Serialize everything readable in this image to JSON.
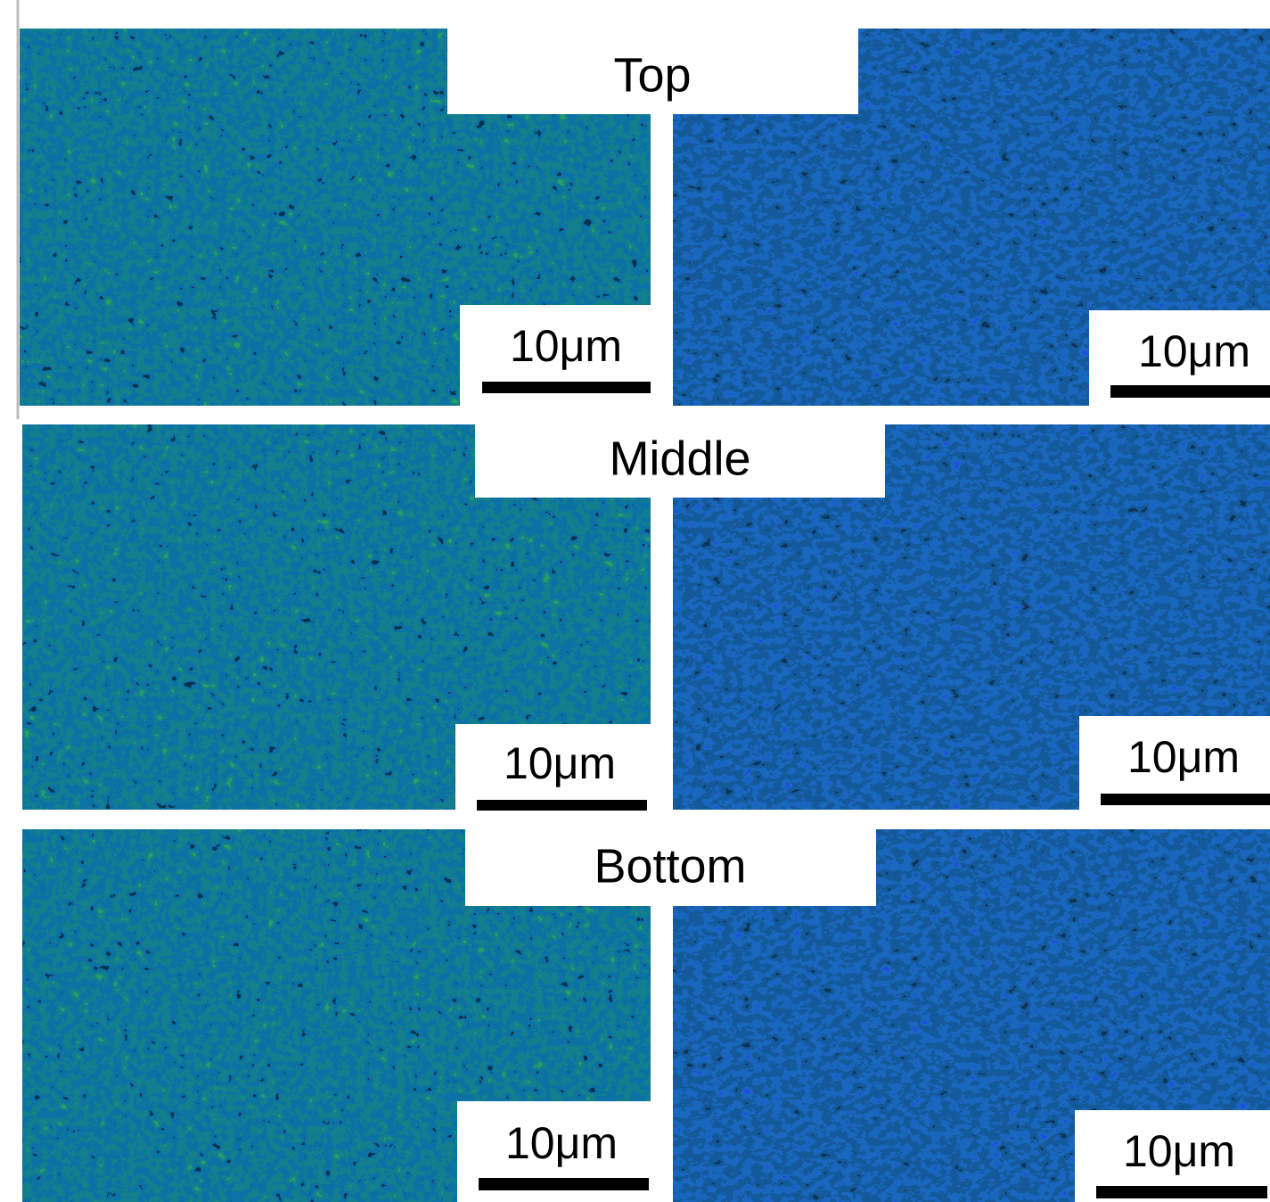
{
  "rows": [
    {
      "label": "Top",
      "left": {
        "scale_bar": "10μm"
      },
      "right": {
        "scale_bar": "10μm"
      }
    },
    {
      "label": "Middle",
      "left": {
        "scale_bar": "10μm"
      },
      "right": {
        "scale_bar": "10μm"
      }
    },
    {
      "label": "Bottom",
      "left": {
        "scale_bar": "10μm"
      },
      "right": {
        "scale_bar": "10μm"
      }
    }
  ]
}
